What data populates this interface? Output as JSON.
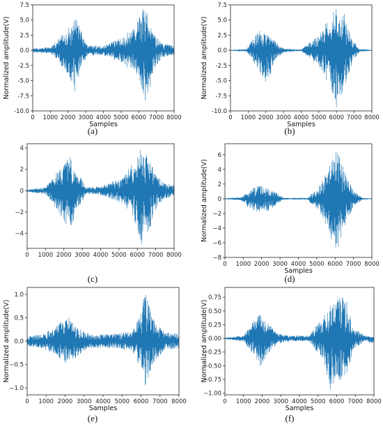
{
  "figure": {
    "signal_color": "#1f77b4",
    "panels": [
      {
        "caption": "(a)",
        "chart_data": {
          "type": "line",
          "xlabel": "Samples",
          "ylabel": "Normalized amplitude(V)",
          "xlim": [
            0,
            8000
          ],
          "ylim": [
            -10.0,
            7.5
          ],
          "xticks": [
            "0",
            "1000",
            "2000",
            "3000",
            "4000",
            "5000",
            "6000",
            "7000",
            "8000"
          ],
          "yticks": [
            "-10.0",
            "-7.5",
            "-5.0",
            "-2.5",
            "0.0",
            "2.5",
            "5.0",
            "7.5"
          ],
          "ytick_values": [
            -10.0,
            -7.5,
            -5.0,
            -2.5,
            0.0,
            2.5,
            5.0,
            7.5
          ],
          "envelope": [
            {
              "x": 0,
              "up": 0.3,
              "lo": -0.3
            },
            {
              "x": 1000,
              "up": 0.5,
              "lo": -0.5
            },
            {
              "x": 1500,
              "up": 2.0,
              "lo": -2.0
            },
            {
              "x": 2100,
              "up": 4.0,
              "lo": -4.5
            },
            {
              "x": 2400,
              "up": 5.5,
              "lo": -7.0
            },
            {
              "x": 2700,
              "up": 3.5,
              "lo": -3.0
            },
            {
              "x": 3100,
              "up": 0.8,
              "lo": -0.8
            },
            {
              "x": 4000,
              "up": 0.8,
              "lo": -0.8
            },
            {
              "x": 5000,
              "up": 2.0,
              "lo": -2.0
            },
            {
              "x": 5800,
              "up": 4.0,
              "lo": -4.0
            },
            {
              "x": 6250,
              "up": 7.3,
              "lo": -7.0
            },
            {
              "x": 6450,
              "up": 6.5,
              "lo": -9.3
            },
            {
              "x": 6800,
              "up": 3.0,
              "lo": -3.5
            },
            {
              "x": 7300,
              "up": 1.2,
              "lo": -1.2
            },
            {
              "x": 8000,
              "up": 0.8,
              "lo": -0.8
            }
          ]
        }
      },
      {
        "caption": "(b)",
        "chart_data": {
          "type": "line",
          "xlabel": "Samples",
          "ylabel": "Normalized amplitude(V)",
          "xlim": [
            0,
            8000
          ],
          "ylim": [
            -10.0,
            7.5
          ],
          "xticks": [
            "0",
            "1000",
            "2000",
            "3000",
            "4000",
            "5000",
            "6000",
            "7000",
            "8000"
          ],
          "yticks": [
            "-10.0",
            "-7.5",
            "-5.0",
            "-2.5",
            "0.0",
            "2.5",
            "5.0",
            "7.5"
          ],
          "ytick_values": [
            -10.0,
            -7.5,
            -5.0,
            -2.5,
            0.0,
            2.5,
            5.0,
            7.5
          ],
          "envelope": [
            {
              "x": 0,
              "up": 0.05,
              "lo": -0.05
            },
            {
              "x": 900,
              "up": 0.2,
              "lo": -0.2
            },
            {
              "x": 1300,
              "up": 2.0,
              "lo": -2.0
            },
            {
              "x": 1700,
              "up": 3.5,
              "lo": -4.0
            },
            {
              "x": 2100,
              "up": 3.0,
              "lo": -5.8
            },
            {
              "x": 2500,
              "up": 1.5,
              "lo": -2.0
            },
            {
              "x": 3000,
              "up": 0.3,
              "lo": -0.3
            },
            {
              "x": 4000,
              "up": 0.1,
              "lo": -0.1
            },
            {
              "x": 5000,
              "up": 2.5,
              "lo": -2.5
            },
            {
              "x": 5600,
              "up": 5.5,
              "lo": -6.0
            },
            {
              "x": 6000,
              "up": 7.0,
              "lo": -9.5
            },
            {
              "x": 6400,
              "up": 6.5,
              "lo": -6.5
            },
            {
              "x": 6900,
              "up": 2.0,
              "lo": -2.0
            },
            {
              "x": 7300,
              "up": 0.2,
              "lo": -0.2
            },
            {
              "x": 8000,
              "up": 0.05,
              "lo": -0.05
            }
          ]
        }
      },
      {
        "caption": "(c)",
        "chart_data": {
          "type": "line",
          "xlabel": "",
          "ylabel": "",
          "xlim": [
            0,
            8000
          ],
          "ylim": [
            -5.4,
            4.4
          ],
          "xticks": [
            "0",
            "1000",
            "2000",
            "3000",
            "4000",
            "5000",
            "6000",
            "7000",
            "8000"
          ],
          "yticks": [
            "−4",
            "−2",
            "0",
            "2",
            "4"
          ],
          "ytick_values": [
            -4,
            -2,
            0,
            2,
            4
          ],
          "envelope": [
            {
              "x": 0,
              "up": 0.1,
              "lo": -0.1
            },
            {
              "x": 1000,
              "up": 0.3,
              "lo": -0.3
            },
            {
              "x": 1500,
              "up": 1.5,
              "lo": -1.5
            },
            {
              "x": 2000,
              "up": 2.5,
              "lo": -3.0
            },
            {
              "x": 2350,
              "up": 3.3,
              "lo": -3.5
            },
            {
              "x": 2700,
              "up": 2.0,
              "lo": -2.0
            },
            {
              "x": 3200,
              "up": 0.3,
              "lo": -0.3
            },
            {
              "x": 4000,
              "up": 0.4,
              "lo": -0.4
            },
            {
              "x": 5200,
              "up": 1.2,
              "lo": -1.2
            },
            {
              "x": 5900,
              "up": 3.0,
              "lo": -3.0
            },
            {
              "x": 6250,
              "up": 4.1,
              "lo": -5.3
            },
            {
              "x": 6500,
              "up": 3.5,
              "lo": -5.2
            },
            {
              "x": 6900,
              "up": 2.0,
              "lo": -2.0
            },
            {
              "x": 7400,
              "up": 0.8,
              "lo": -0.8
            },
            {
              "x": 8000,
              "up": 0.5,
              "lo": -0.5
            }
          ]
        }
      },
      {
        "caption": "(d)",
        "chart_data": {
          "type": "line",
          "xlabel": "Samples",
          "ylabel": "Normalized amplitude(V)",
          "xlim": [
            0,
            8000
          ],
          "ylim": [
            -8,
            7.5
          ],
          "xticks": [
            "0",
            "1000",
            "2000",
            "3000",
            "4000",
            "5000",
            "6000",
            "7000",
            "8000"
          ],
          "yticks": [
            "−8",
            "−6",
            "−4",
            "−2",
            "0",
            "2",
            "4",
            "6"
          ],
          "ytick_values": [
            -8,
            -6,
            -4,
            -2,
            0,
            2,
            4,
            6
          ],
          "envelope": [
            {
              "x": 0,
              "up": 0.05,
              "lo": -0.05
            },
            {
              "x": 900,
              "up": 0.2,
              "lo": -0.2
            },
            {
              "x": 1300,
              "up": 1.0,
              "lo": -1.2
            },
            {
              "x": 1800,
              "up": 1.9,
              "lo": -2.0
            },
            {
              "x": 2300,
              "up": 1.5,
              "lo": -1.8
            },
            {
              "x": 2800,
              "up": 0.8,
              "lo": -0.8
            },
            {
              "x": 3200,
              "up": 0.1,
              "lo": -0.1
            },
            {
              "x": 4500,
              "up": 0.1,
              "lo": -0.1
            },
            {
              "x": 5200,
              "up": 2.0,
              "lo": -2.0
            },
            {
              "x": 5800,
              "up": 5.0,
              "lo": -5.5
            },
            {
              "x": 6100,
              "up": 7.0,
              "lo": -7.5
            },
            {
              "x": 6500,
              "up": 4.0,
              "lo": -4.0
            },
            {
              "x": 7000,
              "up": 1.0,
              "lo": -1.0
            },
            {
              "x": 7500,
              "up": 0.1,
              "lo": -0.1
            },
            {
              "x": 8000,
              "up": 0.05,
              "lo": -0.05
            }
          ]
        }
      },
      {
        "caption": "(e)",
        "chart_data": {
          "type": "line",
          "xlabel": "Samples",
          "ylabel": "Normalized amplitude(V)",
          "xlim": [
            0,
            8000
          ],
          "ylim": [
            -1.15,
            1.15
          ],
          "xticks": [
            "0",
            "1000",
            "2000",
            "3000",
            "4000",
            "5000",
            "6000",
            "7000",
            "8000"
          ],
          "yticks": [
            "−1.0",
            "−0.5",
            "0.0",
            "0.5",
            "1.0"
          ],
          "ytick_values": [
            -1.0,
            -0.5,
            0.0,
            0.5,
            1.0
          ],
          "envelope": [
            {
              "x": 0,
              "up": 0.1,
              "lo": -0.1
            },
            {
              "x": 800,
              "up": 0.15,
              "lo": -0.15
            },
            {
              "x": 1500,
              "up": 0.3,
              "lo": -0.3
            },
            {
              "x": 2100,
              "up": 0.55,
              "lo": -0.5
            },
            {
              "x": 2600,
              "up": 0.3,
              "lo": -0.35
            },
            {
              "x": 3300,
              "up": 0.15,
              "lo": -0.15
            },
            {
              "x": 4500,
              "up": 0.15,
              "lo": -0.15
            },
            {
              "x": 5500,
              "up": 0.2,
              "lo": -0.2
            },
            {
              "x": 5900,
              "up": 0.5,
              "lo": -0.5
            },
            {
              "x": 6250,
              "up": 1.1,
              "lo": -1.05
            },
            {
              "x": 6600,
              "up": 0.5,
              "lo": -0.5
            },
            {
              "x": 7200,
              "up": 0.2,
              "lo": -0.2
            },
            {
              "x": 8000,
              "up": 0.15,
              "lo": -0.15
            }
          ]
        }
      },
      {
        "caption": "(f)",
        "chart_data": {
          "type": "line",
          "xlabel": "Samples",
          "ylabel": "Normalized amplitude(V)",
          "xlim": [
            0,
            8000
          ],
          "ylim": [
            -1.03,
            0.93
          ],
          "xticks": [
            "0",
            "1000",
            "2000",
            "3000",
            "4000",
            "5000",
            "6000",
            "7000",
            "8000"
          ],
          "yticks": [
            "−1.00",
            "−0.75",
            "−0.50",
            "−0.25",
            "0.00",
            "0.25",
            "0.50",
            "0.75"
          ],
          "ytick_values": [
            -1.0,
            -0.75,
            -0.5,
            -0.25,
            0.0,
            0.25,
            0.5,
            0.75
          ],
          "envelope": [
            {
              "x": 0,
              "up": 0.01,
              "lo": -0.01
            },
            {
              "x": 1000,
              "up": 0.05,
              "lo": -0.05
            },
            {
              "x": 1500,
              "up": 0.3,
              "lo": -0.3
            },
            {
              "x": 1900,
              "up": 0.45,
              "lo": -0.5
            },
            {
              "x": 2300,
              "up": 0.3,
              "lo": -0.3
            },
            {
              "x": 2800,
              "up": 0.1,
              "lo": -0.1
            },
            {
              "x": 3500,
              "up": 0.05,
              "lo": -0.05
            },
            {
              "x": 4500,
              "up": 0.05,
              "lo": -0.05
            },
            {
              "x": 5300,
              "up": 0.4,
              "lo": -0.4
            },
            {
              "x": 5650,
              "up": 0.6,
              "lo": -0.95
            },
            {
              "x": 6000,
              "up": 0.7,
              "lo": -0.7
            },
            {
              "x": 6400,
              "up": 0.9,
              "lo": -0.85
            },
            {
              "x": 6900,
              "up": 0.2,
              "lo": -0.2
            },
            {
              "x": 7500,
              "up": 0.05,
              "lo": -0.05
            },
            {
              "x": 8000,
              "up": 0.02,
              "lo": -0.1
            }
          ]
        }
      }
    ]
  }
}
